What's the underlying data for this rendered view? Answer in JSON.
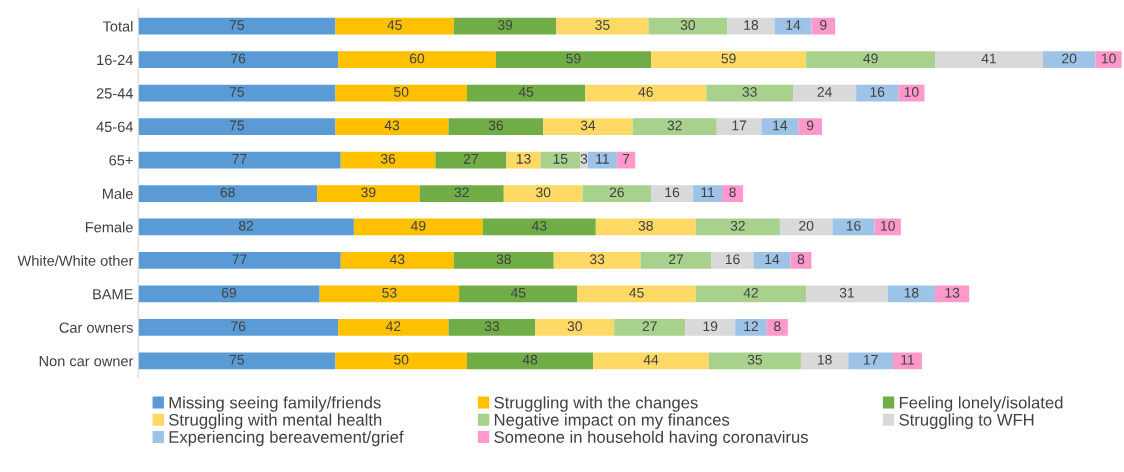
{
  "chart_data": {
    "type": "bar",
    "orientation": "horizontal",
    "stacked": true,
    "data_labels": true,
    "legend": "bottom",
    "grid": false,
    "categories": [
      "Total",
      "16-24",
      "25-44",
      "45-64",
      "65+",
      "Male",
      "Female",
      "White/White other",
      "BAME",
      "Car owners",
      "Non car owner"
    ],
    "series": [
      {
        "name": "Missing seeing family/friends",
        "color": "#5b9bd5",
        "values": [
          75,
          76,
          75,
          75,
          77,
          68,
          82,
          77,
          69,
          76,
          75
        ]
      },
      {
        "name": "Struggling with the changes",
        "color": "#ffc000",
        "values": [
          45,
          60,
          50,
          43,
          36,
          39,
          49,
          43,
          53,
          42,
          50
        ]
      },
      {
        "name": "Feeling lonely/isolated",
        "color": "#70ad47",
        "values": [
          39,
          59,
          45,
          36,
          27,
          32,
          43,
          38,
          45,
          33,
          48
        ]
      },
      {
        "name": "Struggling with mental health",
        "color": "#ffd966",
        "values": [
          35,
          59,
          46,
          34,
          13,
          30,
          38,
          33,
          45,
          30,
          44
        ]
      },
      {
        "name": "Negative impact on my finances",
        "color": "#a9d18e",
        "values": [
          30,
          49,
          33,
          32,
          15,
          26,
          32,
          27,
          42,
          27,
          35
        ]
      },
      {
        "name": "Struggling to WFH",
        "color": "#d9d9d9",
        "values": [
          18,
          41,
          24,
          17,
          3,
          16,
          20,
          16,
          31,
          19,
          18
        ]
      },
      {
        "name": "Experiencing bereavement/grief",
        "color": "#9dc3e6",
        "values": [
          14,
          20,
          16,
          14,
          11,
          11,
          16,
          14,
          18,
          12,
          17
        ]
      },
      {
        "name": "Someone in household having coronavirus",
        "color": "#ff99cc",
        "values": [
          9,
          10,
          10,
          9,
          7,
          8,
          10,
          8,
          13,
          8,
          11
        ]
      }
    ]
  }
}
